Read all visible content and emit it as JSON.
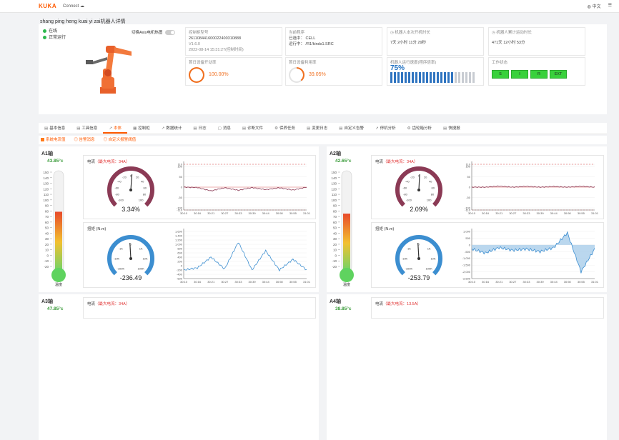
{
  "header": {
    "logo": "KUKA",
    "connect": "Connect",
    "cloud_icon": "cloud-icon",
    "language": "中文",
    "globe_icon": "globe-icon",
    "menu_icon": "menu-icon"
  },
  "page_title": "shang ping heng kuai yi zai机器人详情",
  "robot": {
    "status_online": "在线",
    "status_run": "正常运行",
    "axis_toggle_label": "切换Axis电机热图"
  },
  "cards": {
    "serial_label": "控制柜型号",
    "serial_value": "261108441600022400310888",
    "version": "V1.6.0",
    "time": "2022-08-14 15:31:27(控制时间)",
    "program_label": "当前程序",
    "program_cell_label": "已选中：",
    "program_cell_value": "CELL",
    "program_run_label": "运行中：",
    "program_run_value": "/R1/kinds1.SRC",
    "uptime_label": "机器人本次开机时长",
    "uptime_value": "7天 2小时 11分 29秒",
    "total_label": "机器人累计运动时长",
    "total_value": "471天 12小时 53分",
    "drive_label": "首日设备开动率",
    "drive_value": "100.00%",
    "drive_frac": 1.0,
    "run_label": "首日设备利用率",
    "run_value": "39.05%",
    "run_frac": 0.39,
    "speed_label": "机器人运行速度(程序倍率)",
    "speed_value": "75%",
    "speed_frac": 0.75,
    "work_label": "工作状态",
    "lights": [
      "S",
      "I",
      "R",
      "EXT"
    ]
  },
  "tabs": [
    {
      "icon": "▤",
      "label": "基本信息"
    },
    {
      "icon": "▤",
      "label": "工具信息"
    },
    {
      "icon": "↗",
      "label": "本体"
    },
    {
      "icon": "▦",
      "label": "控制柜"
    },
    {
      "icon": "↗",
      "label": "数据统计"
    },
    {
      "icon": "▤",
      "label": "日志"
    },
    {
      "icon": "▢",
      "label": "消息"
    },
    {
      "icon": "▤",
      "label": "诊断文件"
    },
    {
      "icon": "⚙",
      "label": "保养任务"
    },
    {
      "icon": "▤",
      "label": "变更日志"
    },
    {
      "icon": "▤",
      "label": "自定义告警"
    },
    {
      "icon": "↗",
      "label": "停机分析"
    },
    {
      "icon": "⚙",
      "label": "齿轮箱分析"
    },
    {
      "icon": "▤",
      "label": "快捷报"
    }
  ],
  "subtabs": [
    "系统电流值",
    "告警消息",
    "自定义报警阈值"
  ],
  "axes": [
    {
      "name": "A1轴",
      "temp": "43.85°c",
      "temp_frac": 0.58,
      "current_title": "电流",
      "current_max": "（最大电流：34A）",
      "current_pct": "3.34%",
      "current_frac": 0.03,
      "torque_title": "扭矩 (N.m)",
      "torque_val": "-236.49",
      "torque_frac": -0.024
    },
    {
      "name": "A2轴",
      "temp": "42.65°c",
      "temp_frac": 0.56,
      "current_title": "电流",
      "current_max": "（最大电流：34A）",
      "current_pct": "2.09%",
      "current_frac": 0.021,
      "torque_title": "扭矩 (N.m)",
      "torque_val": "-253.79",
      "torque_frac": -0.025
    },
    {
      "name": "A3轴",
      "temp": "47.85°c",
      "current_title": "电流",
      "current_max": "（最大电流：34A）"
    },
    {
      "name": "A4轴",
      "temp": "38.85°c",
      "current_title": "电流",
      "current_max": "（最大电流：13.5A）"
    }
  ],
  "thermo_ticks": [
    "150",
    "140",
    "130",
    "120",
    "110",
    "100",
    "90",
    "80",
    "70",
    "60",
    "50",
    "40",
    "30",
    "20",
    "10",
    "0",
    "-10",
    "-20"
  ],
  "thermo_label": "温度",
  "gauge_current_ticks": [
    "-100",
    "-80",
    "-60",
    "-40",
    "-20",
    "0",
    "20",
    "40",
    "60",
    "80",
    "100"
  ],
  "gauge_torque_ticks": [
    "-100K",
    "-10K",
    "-1K",
    "0",
    "1K",
    "10K",
    "100K"
  ],
  "time_ticks": [
    "30:10",
    "30:16",
    "30:21",
    "30:27",
    "30:33",
    "30:39",
    "30:44",
    "30:50",
    "30:55",
    "31:01"
  ],
  "current_y_ticks": [
    "110",
    "100",
    "50",
    "0",
    "-50",
    "-100",
    "-110"
  ],
  "torque_y_ticks": [
    "1,600",
    "1,400",
    "1,200",
    "1,000",
    "800",
    "600",
    "400",
    "200",
    "0",
    "-200",
    "-400",
    "-600"
  ],
  "torque2_y_ticks": [
    "1,000",
    "500",
    "0",
    "-500",
    "-1,000",
    "-1,500",
    "-2,000",
    "-2,500"
  ],
  "colors": {
    "accent": "#ff5a00",
    "gauge_red": "#8b3a55",
    "gauge_blue": "#3c8ed0",
    "ok_green": "#39d13c"
  },
  "chart_data": [
    {
      "type": "line",
      "title": "A1轴 电流",
      "x": [
        "30:10",
        "30:16",
        "30:21",
        "30:27",
        "30:33",
        "30:39",
        "30:44",
        "30:50",
        "30:55",
        "31:01"
      ],
      "ylim": [
        -110,
        110
      ],
      "series": [
        {
          "values": [
            0,
            -2,
            -18,
            -3,
            -15,
            -2,
            -12,
            -3,
            -14,
            0
          ]
        }
      ]
    },
    {
      "type": "line",
      "title": "A1轴 扭矩",
      "x": [
        "30:10",
        "30:16",
        "30:21",
        "30:27",
        "30:33",
        "30:39",
        "30:44",
        "30:50",
        "30:55",
        "31:01"
      ],
      "ylim": [
        -600,
        1600
      ],
      "series": [
        {
          "values": [
            -200,
            -100,
            400,
            -150,
            1100,
            -200,
            700,
            -200,
            300,
            -200
          ]
        }
      ]
    },
    {
      "type": "line",
      "title": "A2轴 电流",
      "x": [
        "30:10",
        "30:16",
        "30:21",
        "30:27",
        "30:33",
        "30:39",
        "30:44",
        "30:50",
        "30:55",
        "31:01"
      ],
      "ylim": [
        -110,
        110
      ],
      "series": [
        {
          "values": [
            0,
            0,
            5,
            0,
            4,
            0,
            3,
            0,
            4,
            0
          ]
        }
      ]
    },
    {
      "type": "line",
      "title": "A2轴 扭矩",
      "x": [
        "30:10",
        "30:16",
        "30:21",
        "30:27",
        "30:33",
        "30:39",
        "30:44",
        "30:50",
        "30:55",
        "31:01"
      ],
      "ylim": [
        -2500,
        1000
      ],
      "series": [
        {
          "values": [
            -300,
            -600,
            -200,
            -400,
            -300,
            -500,
            -200,
            900,
            -2000,
            -300
          ]
        }
      ]
    }
  ]
}
